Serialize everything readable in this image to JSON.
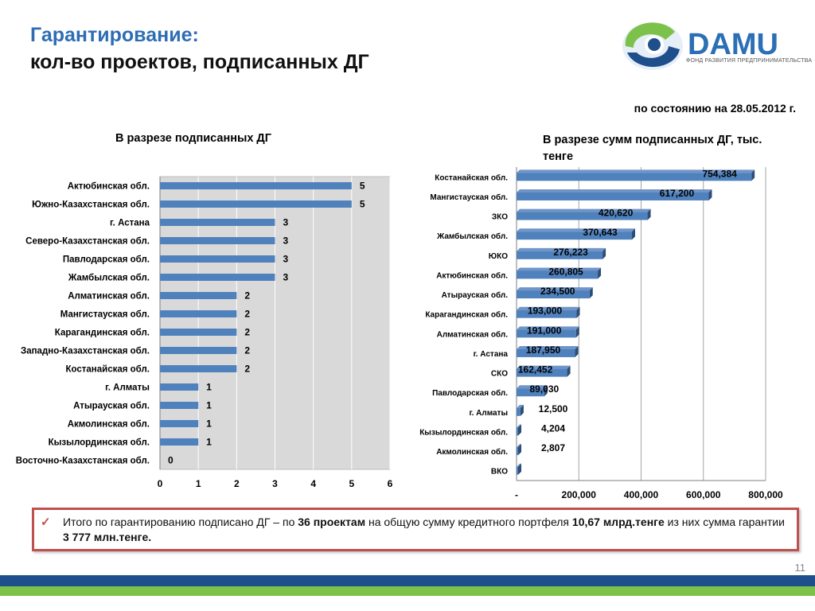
{
  "header": {
    "title_line1": "Гарантирование:",
    "title_line2": "кол-во проектов, подписанных ДГ",
    "date_text": "по состоянию на 28.05.2012 г.",
    "left_subtitle": "В разрезе подписанных ДГ",
    "right_subtitle": "В разрезе сумм подписанных ДГ, тыс. тенге"
  },
  "logo": {
    "name": "DAMU",
    "caption": "ФОНД РАЗВИТИЯ ПРЕДПРИНИМАТЕЛЬСТВА"
  },
  "colors": {
    "bar": "#4f81bd",
    "bar_dark": "#2c4d75",
    "plot_bg": "#d9d9d9",
    "accent_red": "#c0504d",
    "title_blue": "#2e6db4",
    "footer_blue": "#1f4e8c",
    "footer_green": "#7cc24a"
  },
  "chart_data": [
    {
      "type": "bar",
      "orientation": "horizontal",
      "categories": [
        "Актюбинская обл.",
        "Южно-Казахстанская обл.",
        "г. Астана",
        "Северо-Казахстанская обл.",
        "Павлодарская обл.",
        "Жамбылская обл.",
        "Алматинская обл.",
        "Мангистауская обл.",
        "Карагандинская обл.",
        "Западно-Казахстанская обл.",
        "Костанайская обл.",
        "г. Алматы",
        "Атырауская обл.",
        "Акмолинская обл.",
        "Кызылординская обл.",
        "Восточно-Казахстанская обл."
      ],
      "values": [
        5,
        5,
        3,
        3,
        3,
        3,
        2,
        2,
        2,
        2,
        2,
        1,
        1,
        1,
        1,
        0
      ],
      "data_labels": [
        "5",
        "5",
        "3",
        "3",
        "3",
        "3",
        "2",
        "2",
        "2",
        "2",
        "2",
        "1",
        "1",
        "1",
        "1",
        "0"
      ],
      "xlim": [
        0,
        6
      ],
      "xticks": [
        "0",
        "1",
        "2",
        "3",
        "4",
        "5",
        "6"
      ],
      "grid": true
    },
    {
      "type": "bar",
      "orientation": "horizontal",
      "style": "3d",
      "categories": [
        "Костанайская обл.",
        "Мангистауская обл.",
        "ЗКО",
        "Жамбылская обл.",
        "ЮКО",
        "Актюбинская обл.",
        "Атырауская обл.",
        "Карагандинская обл.",
        "Алматинская обл.",
        "г. Астана",
        "СКО",
        "Павлодарская обл.",
        "г. Алматы",
        "Кызылординская обл.",
        "Акмолинская обл.",
        "ВКО"
      ],
      "values": [
        754384,
        617200,
        420620,
        370643,
        276223,
        260805,
        234500,
        193000,
        191000,
        187950,
        162452,
        89030,
        12500,
        4204,
        2807,
        0
      ],
      "data_labels": [
        "754,384",
        "617,200",
        "420,620",
        "370,643",
        "276,223",
        "260,805",
        "234,500",
        "193,000",
        "191,000",
        "187,950",
        "162,452",
        "89,030",
        "12,500",
        "4,204",
        "2,807",
        ""
      ],
      "xlim": [
        0,
        800000
      ],
      "xticks": [
        "-",
        "200,000",
        "400,000",
        "600,000",
        "800,000"
      ],
      "grid": true
    }
  ],
  "note": {
    "text_1": "Итого по гарантированию подписано ДГ – по ",
    "text_2": "36 проектам",
    "text_3": " на общую сумму кредитного портфеля  ",
    "text_4": "10,67 млрд.тенге",
    "text_5": "  из них сумма гарантии ",
    "text_6": "3 777 млн.тенге."
  },
  "footer": {
    "page_number": "11"
  }
}
